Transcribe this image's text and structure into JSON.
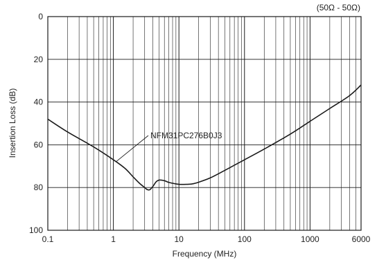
{
  "chart_data": {
    "type": "line",
    "title": "",
    "impedance_note": "(50Ω - 50Ω)",
    "xlabel": "Frequency (MHz)",
    "ylabel": "Insertion Loss (dB)",
    "x_scale": "log",
    "xlim": [
      0.1,
      6000
    ],
    "ylim": [
      0,
      100
    ],
    "y_inverted": true,
    "grid": true,
    "x_tick_labels": [
      {
        "value": 0.1,
        "label": "0.1"
      },
      {
        "value": 1,
        "label": "1"
      },
      {
        "value": 10,
        "label": "10"
      },
      {
        "value": 100,
        "label": "100"
      },
      {
        "value": 1000,
        "label": "1000"
      },
      {
        "value": 6000,
        "label": "6000"
      }
    ],
    "y_tick_labels": [
      {
        "value": 0,
        "label": "0"
      },
      {
        "value": 20,
        "label": "20"
      },
      {
        "value": 40,
        "label": "40"
      },
      {
        "value": 60,
        "label": "60"
      },
      {
        "value": 80,
        "label": "80"
      },
      {
        "value": 100,
        "label": "100"
      }
    ],
    "series": [
      {
        "name": "NFM31PC276B0J3",
        "color": "#1a1a1a",
        "points": [
          [
            0.1,
            48
          ],
          [
            0.2,
            54
          ],
          [
            0.5,
            61
          ],
          [
            1,
            67
          ],
          [
            1.5,
            71
          ],
          [
            2,
            75
          ],
          [
            2.5,
            78
          ],
          [
            3,
            80
          ],
          [
            3.3,
            81
          ],
          [
            3.6,
            81
          ],
          [
            4,
            79.5
          ],
          [
            4.5,
            77.3
          ],
          [
            5,
            76.5
          ],
          [
            6,
            76.8
          ],
          [
            7,
            77.6
          ],
          [
            8,
            78
          ],
          [
            10,
            78.5
          ],
          [
            13,
            78.5
          ],
          [
            16,
            78.3
          ],
          [
            20,
            77.5
          ],
          [
            30,
            75.5
          ],
          [
            50,
            72
          ],
          [
            100,
            67
          ],
          [
            200,
            62
          ],
          [
            500,
            55
          ],
          [
            1000,
            49
          ],
          [
            2000,
            43
          ],
          [
            4000,
            37
          ],
          [
            6000,
            32
          ]
        ]
      }
    ],
    "annotations": [
      {
        "text": "NFM31PC276B0J3",
        "series": "NFM31PC276B0J3"
      }
    ]
  }
}
